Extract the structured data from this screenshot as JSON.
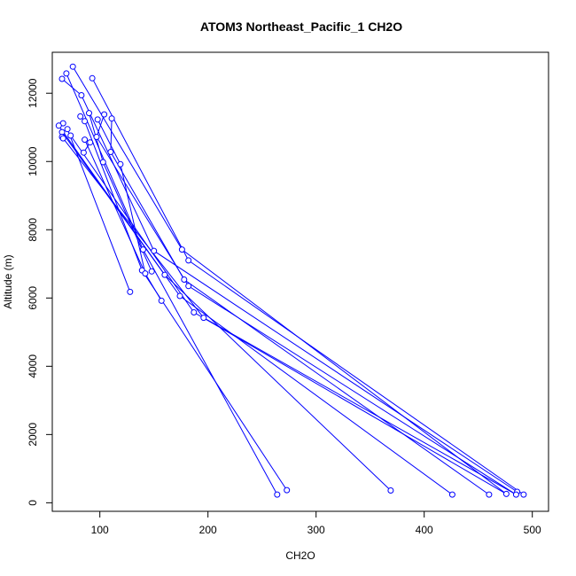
{
  "chart_data": {
    "type": "line",
    "title": "ATOM3 Northeast_Pacific_1 CH2O",
    "xlabel": "CH2O",
    "ylabel": "Altitude (m)",
    "xlim": [
      56,
      515
    ],
    "ylim": [
      -250,
      13200
    ],
    "xticks": [
      100,
      200,
      300,
      400,
      500
    ],
    "yticks": [
      0,
      2000,
      4000,
      6000,
      8000,
      10000,
      12000
    ],
    "grid": false,
    "legend": "none",
    "color": "#0000ff",
    "points": [
      {
        "x": 75,
        "y": 12780
      },
      {
        "x": 69,
        "y": 12580
      },
      {
        "x": 93,
        "y": 12440
      },
      {
        "x": 65,
        "y": 12420
      },
      {
        "x": 83,
        "y": 11940
      },
      {
        "x": 90,
        "y": 11420
      },
      {
        "x": 104,
        "y": 11380
      },
      {
        "x": 82,
        "y": 11320
      },
      {
        "x": 111,
        "y": 11260
      },
      {
        "x": 98,
        "y": 11230
      },
      {
        "x": 86,
        "y": 11180
      },
      {
        "x": 66,
        "y": 11120
      },
      {
        "x": 62,
        "y": 11050
      },
      {
        "x": 70,
        "y": 10950
      },
      {
        "x": 65,
        "y": 10860
      },
      {
        "x": 73,
        "y": 10760
      },
      {
        "x": 97,
        "y": 10720
      },
      {
        "x": 65,
        "y": 10720
      },
      {
        "x": 66,
        "y": 10680
      },
      {
        "x": 86,
        "y": 10640
      },
      {
        "x": 91,
        "y": 10560
      },
      {
        "x": 110,
        "y": 10280
      },
      {
        "x": 85,
        "y": 10260
      },
      {
        "x": 103,
        "y": 9980
      },
      {
        "x": 119,
        "y": 9920
      },
      {
        "x": 176,
        "y": 7420
      },
      {
        "x": 140,
        "y": 7420
      },
      {
        "x": 150,
        "y": 7380
      },
      {
        "x": 182,
        "y": 7100
      },
      {
        "x": 139,
        "y": 6810
      },
      {
        "x": 148,
        "y": 6780
      },
      {
        "x": 142,
        "y": 6720
      },
      {
        "x": 160,
        "y": 6680
      },
      {
        "x": 178,
        "y": 6540
      },
      {
        "x": 182,
        "y": 6350
      },
      {
        "x": 128,
        "y": 6180
      },
      {
        "x": 174,
        "y": 6060
      },
      {
        "x": 157,
        "y": 5920
      },
      {
        "x": 187,
        "y": 5580
      },
      {
        "x": 196,
        "y": 5420
      },
      {
        "x": 273,
        "y": 370
      },
      {
        "x": 369,
        "y": 360
      },
      {
        "x": 486,
        "y": 320
      },
      {
        "x": 264,
        "y": 240
      },
      {
        "x": 426,
        "y": 240
      },
      {
        "x": 460,
        "y": 240
      },
      {
        "x": 476,
        "y": 260
      },
      {
        "x": 485,
        "y": 240
      },
      {
        "x": 492,
        "y": 240
      }
    ],
    "segments": [
      [
        {
          "x": 75,
          "y": 12780
        },
        {
          "x": 176,
          "y": 7420
        },
        {
          "x": 476,
          "y": 260
        }
      ],
      [
        {
          "x": 93,
          "y": 12440
        },
        {
          "x": 182,
          "y": 7100
        },
        {
          "x": 492,
          "y": 240
        }
      ],
      [
        {
          "x": 69,
          "y": 12580
        },
        {
          "x": 140,
          "y": 7420
        },
        {
          "x": 264,
          "y": 240
        }
      ],
      [
        {
          "x": 65,
          "y": 12420
        },
        {
          "x": 83,
          "y": 11940
        },
        {
          "x": 150,
          "y": 7380
        },
        {
          "x": 486,
          "y": 320
        }
      ],
      [
        {
          "x": 111,
          "y": 11260
        },
        {
          "x": 110,
          "y": 10280
        },
        {
          "x": 178,
          "y": 6540
        },
        {
          "x": 460,
          "y": 240
        }
      ],
      [
        {
          "x": 104,
          "y": 11380
        },
        {
          "x": 97,
          "y": 10720
        },
        {
          "x": 182,
          "y": 6350
        },
        {
          "x": 485,
          "y": 240
        }
      ],
      [
        {
          "x": 62,
          "y": 11050
        },
        {
          "x": 160,
          "y": 6680
        },
        {
          "x": 369,
          "y": 360
        }
      ],
      [
        {
          "x": 82,
          "y": 11320
        },
        {
          "x": 86,
          "y": 11180
        },
        {
          "x": 139,
          "y": 6810
        },
        {
          "x": 273,
          "y": 370
        }
      ],
      [
        {
          "x": 70,
          "y": 10950
        },
        {
          "x": 128,
          "y": 6180
        }
      ],
      [
        {
          "x": 65,
          "y": 10860
        },
        {
          "x": 174,
          "y": 6060
        },
        {
          "x": 426,
          "y": 240
        }
      ],
      [
        {
          "x": 73,
          "y": 10760
        },
        {
          "x": 187,
          "y": 5580
        },
        {
          "x": 476,
          "y": 260
        }
      ],
      [
        {
          "x": 66,
          "y": 10680
        },
        {
          "x": 196,
          "y": 5420
        },
        {
          "x": 485,
          "y": 240
        }
      ],
      [
        {
          "x": 90,
          "y": 11420
        },
        {
          "x": 103,
          "y": 9980
        },
        {
          "x": 148,
          "y": 6780
        }
      ],
      [
        {
          "x": 86,
          "y": 10640
        },
        {
          "x": 142,
          "y": 6720
        },
        {
          "x": 157,
          "y": 5920
        }
      ],
      [
        {
          "x": 98,
          "y": 11230
        },
        {
          "x": 119,
          "y": 9920
        },
        {
          "x": 142,
          "y": 6720
        }
      ],
      [
        {
          "x": 85,
          "y": 10260
        },
        {
          "x": 91,
          "y": 10560
        }
      ]
    ]
  }
}
